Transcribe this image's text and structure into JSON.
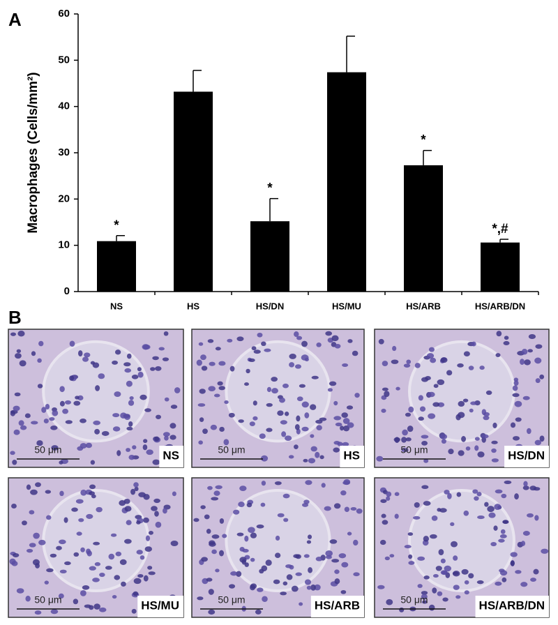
{
  "chart_data": {
    "type": "bar",
    "panel_label": "A",
    "y_label": "Macrophages (Cells/mm²)",
    "categories": [
      "NS",
      "HS",
      "HS/DN",
      "HS/MU",
      "HS/ARB",
      "HS/ARB/DN"
    ],
    "values": [
      10.9,
      43.2,
      15.2,
      47.4,
      27.3,
      10.6
    ],
    "errors": [
      1.2,
      4.6,
      4.9,
      7.8,
      3.2,
      0.7
    ],
    "value_annotations": [
      "*",
      null,
      "*",
      null,
      "*",
      "*,#"
    ],
    "color": "#000000",
    "ylim": [
      0,
      60
    ],
    "yticks": [
      0,
      10,
      20,
      30,
      40,
      50,
      60
    ]
  },
  "panel_b": {
    "label": "B",
    "images": [
      {
        "label": "NS",
        "scale": "50 μm"
      },
      {
        "label": "HS",
        "scale": "50 μm"
      },
      {
        "label": "HS/DN",
        "scale": "50 μm"
      },
      {
        "label": "HS/MU",
        "scale": "50 μm"
      },
      {
        "label": "HS/ARB",
        "scale": "50 μm"
      },
      {
        "label": "HS/ARB/DN",
        "scale": "50 μm"
      }
    ]
  }
}
